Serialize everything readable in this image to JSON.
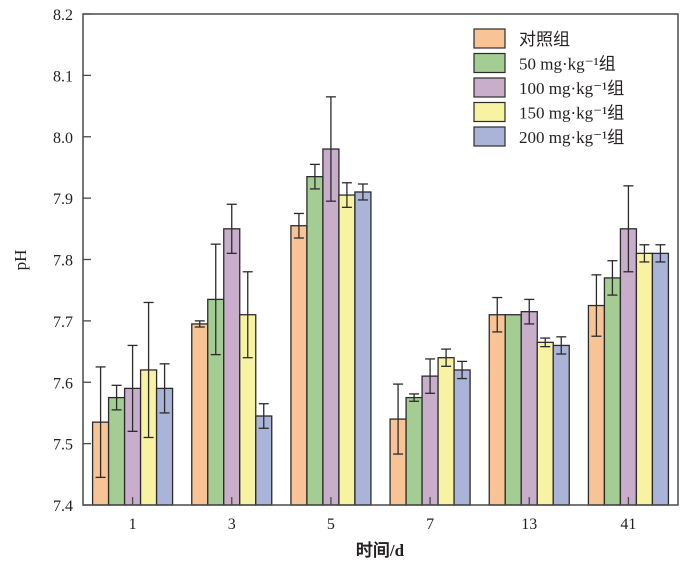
{
  "chart_data": {
    "type": "bar",
    "title": "",
    "xlabel": "时间/d",
    "ylabel": "pH",
    "ylim": [
      7.4,
      8.2
    ],
    "yticks": [
      "7.4",
      "7.5",
      "7.6",
      "7.7",
      "7.8",
      "7.9",
      "8.0",
      "8.1",
      "8.2"
    ],
    "categories": [
      "1",
      "3",
      "5",
      "7",
      "13",
      "41"
    ],
    "legend_position": "top-right",
    "series": [
      {
        "name": "对照组",
        "color": "#F8C496",
        "values": [
          7.535,
          7.695,
          7.855,
          7.54,
          7.71,
          7.725
        ],
        "errors": [
          0.09,
          0.005,
          0.02,
          0.057,
          0.028,
          0.05
        ]
      },
      {
        "name": "50 mg·kg⁻¹组",
        "color": "#A3CD93",
        "values": [
          7.575,
          7.735,
          7.935,
          7.575,
          7.71,
          7.77
        ],
        "errors": [
          0.02,
          0.09,
          0.02,
          0.006,
          0,
          0.028
        ]
      },
      {
        "name": "100 mg·kg⁻¹组",
        "color": "#C9AECB",
        "values": [
          7.59,
          7.85,
          7.98,
          7.61,
          7.715,
          7.85
        ],
        "errors": [
          0.07,
          0.04,
          0.085,
          0.028,
          0.02,
          0.07
        ]
      },
      {
        "name": "150 mg·kg⁻¹组",
        "color": "#F8F3A2",
        "values": [
          7.62,
          7.71,
          7.905,
          7.64,
          7.665,
          7.81
        ],
        "errors": [
          0.11,
          0.07,
          0.02,
          0.014,
          0.007,
          0.014
        ]
      },
      {
        "name": "200 mg·kg⁻¹组",
        "color": "#A9B4D8",
        "values": [
          7.59,
          7.545,
          7.91,
          7.62,
          7.66,
          7.81
        ],
        "errors": [
          0.04,
          0.02,
          0.013,
          0.014,
          0.014,
          0.014
        ]
      }
    ]
  }
}
